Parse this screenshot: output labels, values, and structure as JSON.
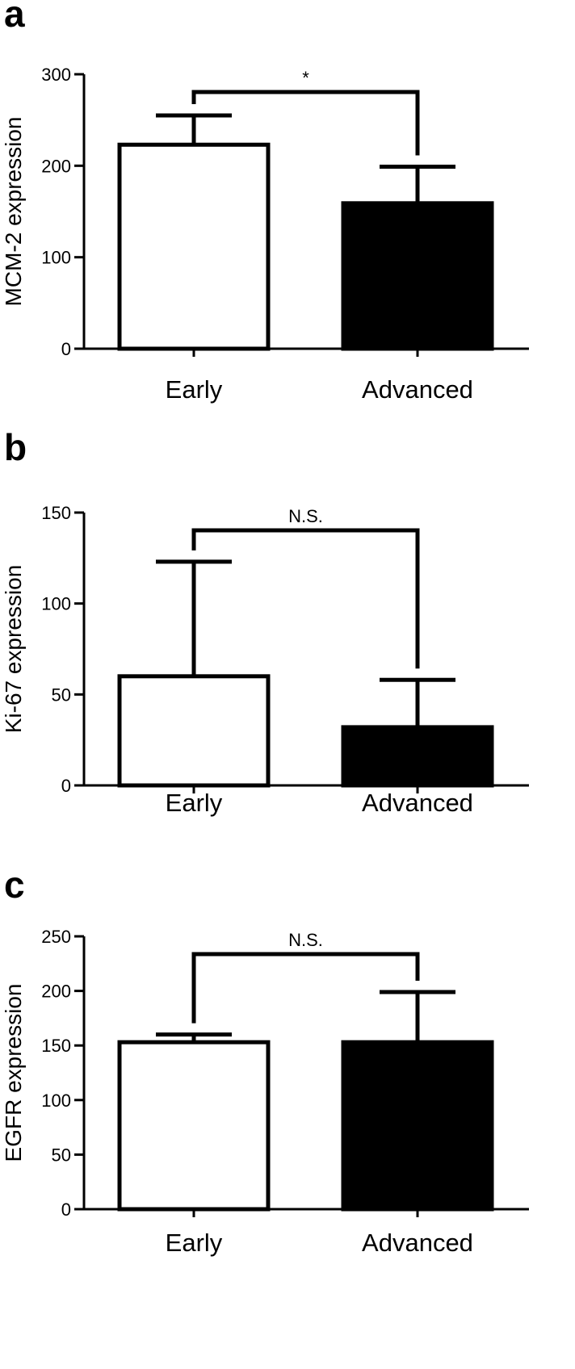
{
  "chart_data": [
    {
      "panel": "a",
      "type": "bar",
      "categories": [
        "Early",
        "Advanced"
      ],
      "values": [
        223,
        159
      ],
      "error_upper": [
        255,
        199
      ],
      "bar_colors": [
        "#ffffff",
        "#000000"
      ],
      "ylabel": "MCM-2 expression",
      "ylim": [
        0,
        300
      ],
      "yticks": [
        0,
        100,
        200,
        300
      ],
      "significance": "*",
      "grid": false
    },
    {
      "panel": "b",
      "type": "bar",
      "categories": [
        "Early",
        "Advanced"
      ],
      "values": [
        60,
        32
      ],
      "error_upper": [
        123,
        58
      ],
      "bar_colors": [
        "#ffffff",
        "#000000"
      ],
      "ylabel": "Ki-67 expression",
      "ylim": [
        0,
        150
      ],
      "yticks": [
        0,
        50,
        100,
        150
      ],
      "significance": "N.S.",
      "grid": false
    },
    {
      "panel": "c",
      "type": "bar",
      "categories": [
        "Early",
        "Advanced"
      ],
      "values": [
        153,
        153
      ],
      "error_upper": [
        160,
        199
      ],
      "bar_colors": [
        "#ffffff",
        "#000000"
      ],
      "ylabel": "EGFR expression",
      "ylim": [
        0,
        250
      ],
      "yticks": [
        0,
        50,
        100,
        150,
        200,
        250
      ],
      "significance": "N.S.",
      "grid": false
    }
  ]
}
